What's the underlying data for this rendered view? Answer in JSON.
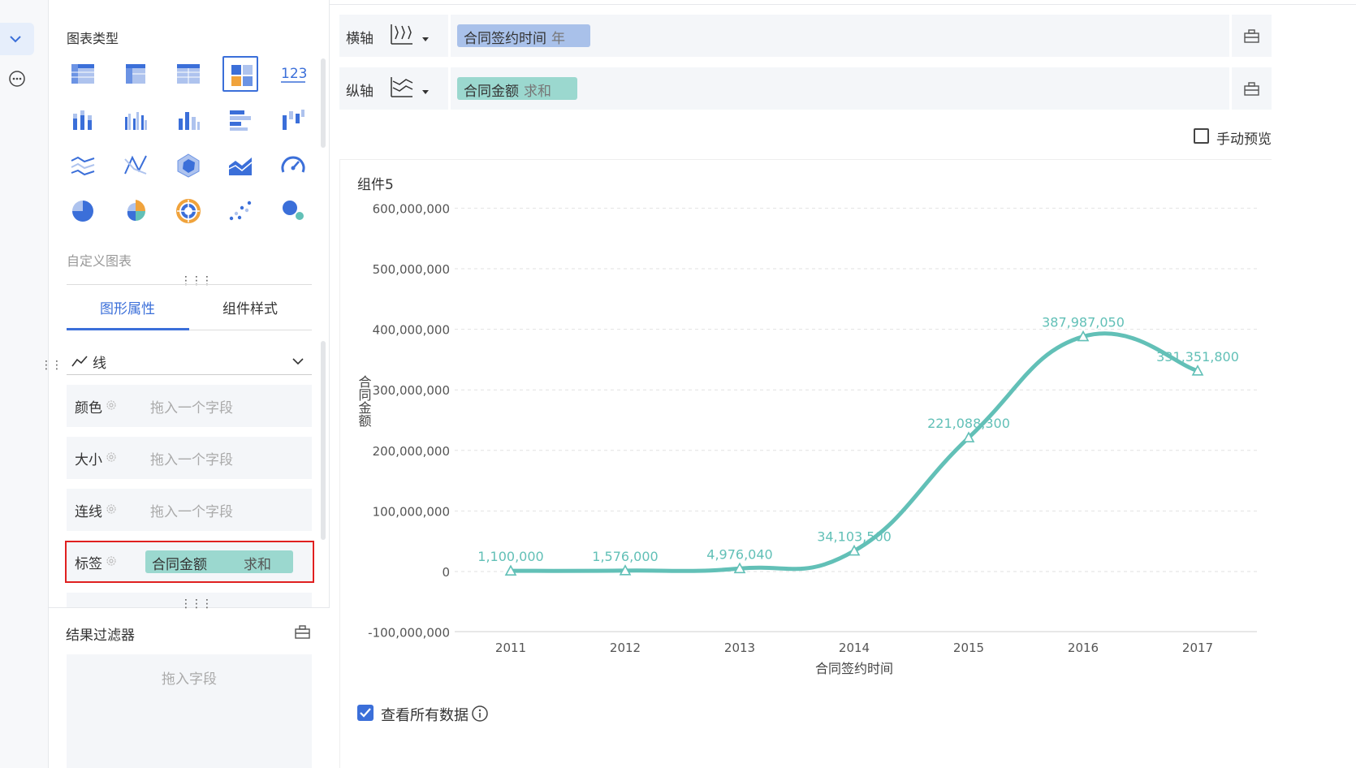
{
  "colors": {
    "accent": "#3b6fd9",
    "series": "#62c0b7",
    "x_pill": "#a9c1ea",
    "y_pill": "#9bd8cf",
    "highlight": "#e02020"
  },
  "chart_type_panel": {
    "title": "图表类型",
    "icons": [
      "table-icon",
      "cross-table-icon",
      "detail-table-icon",
      "multi-chart-icon",
      "kpi-123-icon",
      "stacked-bar-icon",
      "grouped-bar-icon",
      "bar-icon",
      "horizontal-bar-icon",
      "waterfall-icon",
      "line-icon",
      "cross-line-icon",
      "radar-icon",
      "area-icon",
      "gauge-icon",
      "pie-icon",
      "rose-pie-icon",
      "sunburst-icon",
      "scatter-icon",
      "bubble-icon"
    ],
    "kpi_text": "123",
    "custom_chart_label": "自定义图表"
  },
  "tabs": {
    "graphic": "图形属性",
    "style": "组件样式"
  },
  "mark_type": {
    "label": "线"
  },
  "properties": {
    "color": {
      "label": "颜色",
      "placeholder": "拖入一个字段"
    },
    "size": {
      "label": "大小",
      "placeholder": "拖入一个字段"
    },
    "connect": {
      "label": "连线",
      "placeholder": "拖入一个字段"
    },
    "label": {
      "label": "标签",
      "field": "合同金额",
      "aggregation": "求和"
    }
  },
  "result_filter": {
    "title": "结果过滤器",
    "placeholder": "拖入字段"
  },
  "x_axis": {
    "title": "横轴",
    "field": "合同签约时间",
    "granularity": "年"
  },
  "y_axis": {
    "title": "纵轴",
    "field": "合同金额",
    "aggregation": "求和"
  },
  "manual_preview": {
    "label": "手动预览",
    "checked": false
  },
  "component_title": "组件5",
  "view_all_data": {
    "label": "查看所有数据",
    "checked": true
  },
  "chart_data": {
    "type": "line",
    "smooth": true,
    "xlabel": "合同签约时间",
    "ylabel": "合同金额",
    "categories": [
      "2011",
      "2012",
      "2013",
      "2014",
      "2015",
      "2016",
      "2017"
    ],
    "values": [
      1100000,
      1576000,
      4976040,
      34103500,
      221088300,
      387987050,
      331351800
    ],
    "data_labels": [
      "1,100,000",
      "1,576,000",
      "4,976,040",
      "34,103,500",
      "221,088,300",
      "387,987,050",
      "331,351,800"
    ],
    "y_ticks": [
      600000000,
      500000000,
      400000000,
      300000000,
      200000000,
      100000000,
      0,
      -100000000
    ],
    "y_tick_labels": [
      "600,000,000",
      "500,000,000",
      "400,000,000",
      "300,000,000",
      "200,000,000",
      "100,000,000",
      "0",
      "-100,000,000"
    ],
    "marker": "triangle",
    "grid": true
  }
}
